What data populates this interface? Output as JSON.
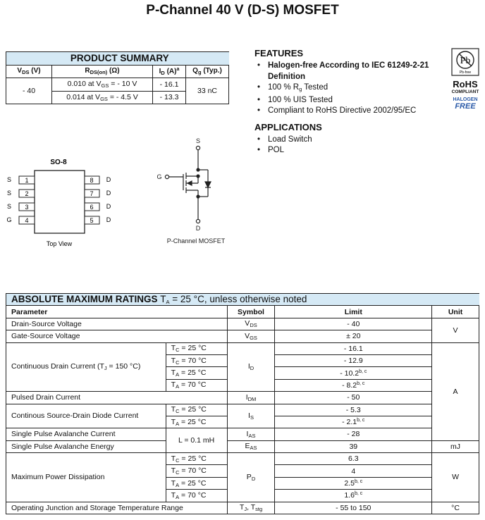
{
  "title": "P-Channel 40 V (D-S) MOSFET",
  "product_summary": {
    "heading": "PRODUCT SUMMARY",
    "headers": [
      [
        "V",
        {
          "sub": "DS"
        },
        " (V)"
      ],
      [
        "R",
        {
          "sub": "DS(on)"
        },
        " (Ω)"
      ],
      [
        "I",
        {
          "sub": "D"
        },
        " (A)",
        {
          "sup": "a"
        }
      ],
      [
        "Q",
        {
          "sub": "g"
        },
        " (Typ.)"
      ]
    ],
    "vds": "- 40",
    "rds": [
      [
        "0.010 at V",
        {
          "sub": "GS"
        },
        " = - 10 V"
      ],
      [
        "0.014 at V",
        {
          "sub": "GS"
        },
        " = - 4.5 V"
      ]
    ],
    "id": [
      "- 16.1",
      "- 13.3"
    ],
    "qg": "33 nC"
  },
  "features": {
    "heading": "FEATURES",
    "items": [
      [
        "Halogen-free According to IEC 61249-2-21 Definition"
      ],
      [
        "100 % R",
        {
          "sub": "g"
        },
        " Tested"
      ],
      [
        "100 % UIS Tested"
      ],
      [
        "Compliant to RoHS Directive 2002/95/EC"
      ]
    ]
  },
  "applications": {
    "heading": "APPLICATIONS",
    "items": [
      "Load Switch",
      "POL"
    ]
  },
  "badge": {
    "pb_text": "Pb",
    "pb_free": "Pb-free",
    "rohs": "RoHS",
    "compliant": "COMPLIANT",
    "halogen": "HALOGEN",
    "free": "FREE",
    "halogen_color": "#2a5aa8"
  },
  "package": {
    "name": "SO-8",
    "caption": "Top View",
    "left_pins": [
      {
        "label": "S",
        "num": "1"
      },
      {
        "label": "S",
        "num": "2"
      },
      {
        "label": "S",
        "num": "3"
      },
      {
        "label": "G",
        "num": "4"
      }
    ],
    "right_pins": [
      {
        "label": "D",
        "num": "8"
      },
      {
        "label": "D",
        "num": "7"
      },
      {
        "label": "D",
        "num": "6"
      },
      {
        "label": "D",
        "num": "5"
      }
    ]
  },
  "symbol": {
    "s": "S",
    "g": "G",
    "d": "D",
    "caption": "P-Channel MOSFET"
  },
  "amr": {
    "heading": "ABSOLUTE MAXIMUM RATINGS",
    "heading_cond": [
      "T",
      {
        "sub": "A"
      },
      " = 25 °C, unless otherwise noted"
    ],
    "col_headers": [
      "Parameter",
      "Symbol",
      "Limit",
      "Unit"
    ],
    "params": [
      "Drain-Source Voltage",
      "Gate-Source Voltage",
      [
        "Continuous Drain Current (T",
        {
          "sub": "J"
        },
        " = 150 °C)"
      ],
      "Pulsed Drain Current",
      "Continous Source-Drain Diode Current",
      "Single Pulse Avalanche Current",
      "Single Pulse Avalanche Energy",
      "Maximum Power Dissipation",
      "Operating Junction and Storage Temperature Range"
    ],
    "conds": {
      "tc25": [
        "T",
        {
          "sub": "C"
        },
        " = 25 °C"
      ],
      "tc70": [
        "T",
        {
          "sub": "C"
        },
        " = 70 °C"
      ],
      "ta25": [
        "T",
        {
          "sub": "A"
        },
        " = 25 °C"
      ],
      "ta70": [
        "T",
        {
          "sub": "A"
        },
        " = 70 °C"
      ],
      "l": "L = 0.1 mH"
    },
    "symbols": [
      [
        "V",
        {
          "sub": "DS"
        }
      ],
      [
        "V",
        {
          "sub": "GS"
        }
      ],
      [
        "I",
        {
          "sub": "D"
        }
      ],
      [
        "I",
        {
          "sub": "DM"
        }
      ],
      [
        "I",
        {
          "sub": "S"
        }
      ],
      [
        "I",
        {
          "sub": "AS"
        }
      ],
      [
        "E",
        {
          "sub": "AS"
        }
      ],
      [
        "P",
        {
          "sub": "D"
        }
      ],
      [
        "T",
        {
          "sub": "J"
        },
        ", T",
        {
          "sub": "stg"
        }
      ]
    ],
    "limits": [
      "- 40",
      "± 20",
      "- 16.1",
      "- 12.9",
      [
        "- 10.2",
        {
          "sup": "b, c"
        }
      ],
      [
        "- 8.2",
        {
          "sup": "b, c"
        }
      ],
      "- 50",
      "- 5.3",
      [
        "- 2.1",
        {
          "sup": "b, c"
        }
      ],
      "- 28",
      "39",
      "6.3",
      "4",
      [
        "2.5",
        {
          "sup": "b, c"
        }
      ],
      [
        "1.6",
        {
          "sup": "b, c"
        }
      ],
      "- 55 to 150"
    ],
    "units": [
      "V",
      "A",
      "mJ",
      "W",
      "°C"
    ]
  }
}
